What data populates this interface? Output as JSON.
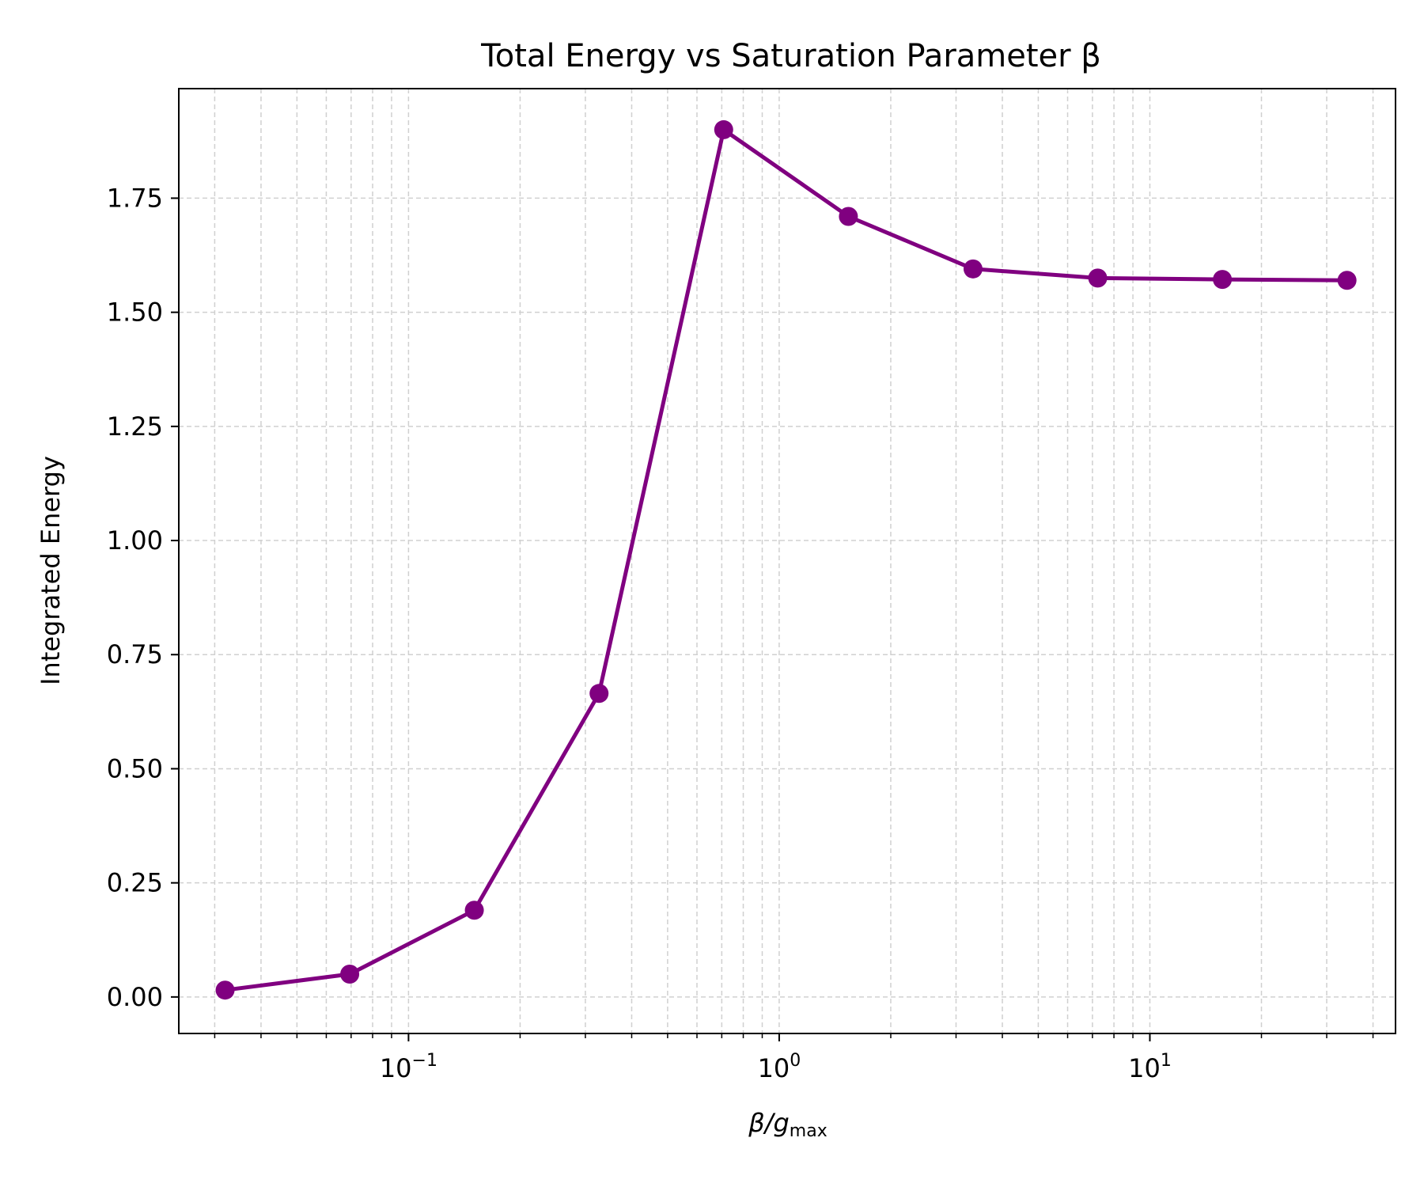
{
  "chart_data": {
    "type": "line",
    "title": "Total Energy vs Saturation Parameter β",
    "xlabel": {
      "main": "β/g",
      "sub": "max"
    },
    "ylabel": "Integrated Energy",
    "xscale": "log",
    "xlim": [
      0.024,
      46
    ],
    "ylim": [
      -0.08,
      1.99
    ],
    "grid": true,
    "grid_style": "dashed",
    "line_color": "#800080",
    "x": [
      0.032,
      0.0694,
      0.1505,
      0.3266,
      0.7084,
      1.537,
      3.334,
      7.232,
      15.69,
      34.03
    ],
    "y": [
      0.015,
      0.05,
      0.19,
      0.665,
      1.9,
      1.71,
      1.595,
      1.575,
      1.572,
      1.57
    ],
    "yticks": [
      {
        "value": 0.0,
        "label": "0.00"
      },
      {
        "value": 0.25,
        "label": "0.25"
      },
      {
        "value": 0.5,
        "label": "0.50"
      },
      {
        "value": 0.75,
        "label": "0.75"
      },
      {
        "value": 1.0,
        "label": "1.00"
      },
      {
        "value": 1.25,
        "label": "1.25"
      },
      {
        "value": 1.5,
        "label": "1.50"
      },
      {
        "value": 1.75,
        "label": "1.75"
      }
    ],
    "xticks": [
      {
        "value": 0.1,
        "base": "10",
        "exp": "−1"
      },
      {
        "value": 1,
        "base": "10",
        "exp": "0"
      },
      {
        "value": 10,
        "base": "10",
        "exp": "1"
      }
    ],
    "xminor_ticks": [
      0.03,
      0.04,
      0.05,
      0.06,
      0.07,
      0.08,
      0.09,
      0.2,
      0.3,
      0.4,
      0.5,
      0.6,
      0.7,
      0.8,
      0.9,
      2,
      3,
      4,
      5,
      6,
      7,
      8,
      9,
      20,
      30,
      40
    ]
  }
}
